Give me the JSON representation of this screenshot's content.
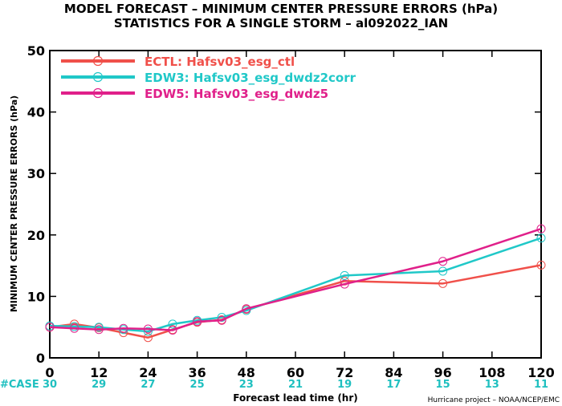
{
  "chart_data": {
    "type": "line",
    "title": "MODEL FORECAST – MINIMUM CENTER PRESSURE ERRORS (hPa)",
    "subtitle": "STATISTICS FOR A SINGLE STORM – al092022_IAN",
    "xlabel": "Forecast lead time (hr)",
    "ylabel": "MINIMUM CENTER PRESSURE ERRORS (hPa)",
    "xlim": [
      0,
      120
    ],
    "ylim": [
      0,
      50
    ],
    "x_ticks": [
      0,
      12,
      24,
      36,
      48,
      60,
      72,
      84,
      96,
      108,
      120
    ],
    "y_ticks": [
      0,
      10,
      20,
      30,
      40,
      50
    ],
    "grid": false,
    "legend_position": "top-left",
    "case_label": "#CASE",
    "case_counts": [
      30,
      29,
      27,
      25,
      23,
      21,
      19,
      17,
      15,
      13,
      11
    ],
    "case_color": "#20c0c0",
    "series": [
      {
        "name": "ECTL: Hafsv03_esg_ctl",
        "color": "#f0504a",
        "x": [
          0,
          6,
          12,
          18,
          24,
          30,
          36,
          42,
          48,
          72,
          96,
          120
        ],
        "y": [
          5.0,
          5.5,
          4.9,
          4.1,
          3.3,
          4.6,
          5.8,
          6.2,
          7.9,
          12.5,
          12.1,
          15.1
        ]
      },
      {
        "name": "EDW3: Hafsv03_esg_dwdz2corr",
        "color": "#20c8c8",
        "x": [
          0,
          6,
          12,
          18,
          24,
          30,
          36,
          42,
          48,
          72,
          96,
          120
        ],
        "y": [
          5.2,
          5.1,
          5.0,
          4.6,
          4.3,
          5.5,
          6.1,
          6.6,
          7.7,
          13.4,
          14.1,
          19.5
        ]
      },
      {
        "name": "EDW5: Hafsv03_esg_dwdz5",
        "color": "#e0208a",
        "x": [
          0,
          6,
          12,
          18,
          24,
          30,
          36,
          42,
          48,
          72,
          96,
          120
        ],
        "y": [
          5.0,
          4.8,
          4.6,
          4.8,
          4.7,
          4.5,
          5.9,
          6.1,
          8.0,
          12.0,
          15.7,
          21.0
        ]
      }
    ],
    "credit": "Hurricane project – NOAA/NCEP/EMC"
  }
}
